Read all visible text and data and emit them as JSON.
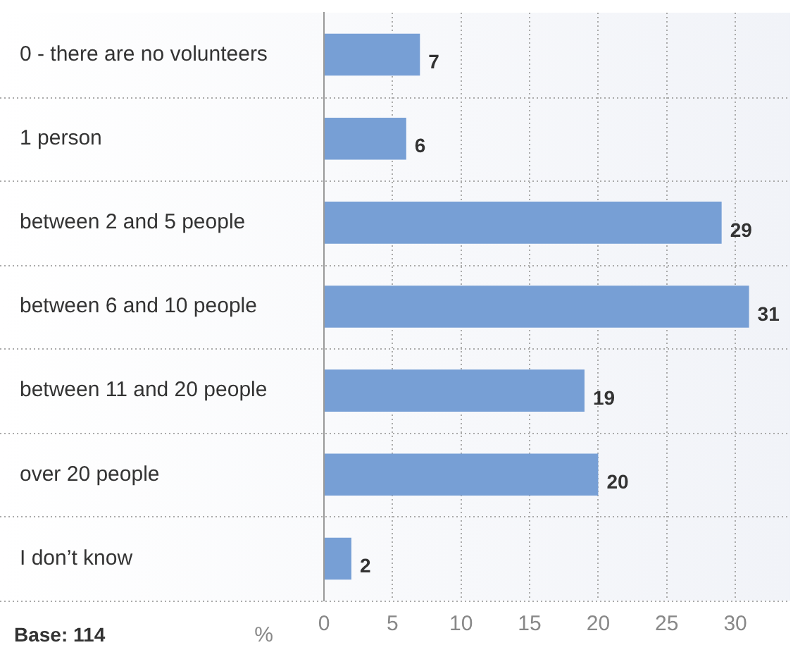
{
  "chart_data": {
    "type": "bar",
    "orientation": "horizontal",
    "categories": [
      "0 - there are no volunteers",
      "1 person",
      "between 2 and 5 people",
      "between 6 and 10 people",
      "between 11 and 20 people",
      "over 20 people",
      "I don’t know"
    ],
    "values": [
      7,
      6,
      29,
      31,
      19,
      20,
      2
    ],
    "color": "#779fd5",
    "xlabel": "%",
    "xlim": [
      0,
      34
    ],
    "xticks": [
      0,
      5,
      10,
      15,
      20,
      25,
      30
    ],
    "grid": true,
    "data_labels": true,
    "annotations": [
      "Base: 114"
    ]
  }
}
